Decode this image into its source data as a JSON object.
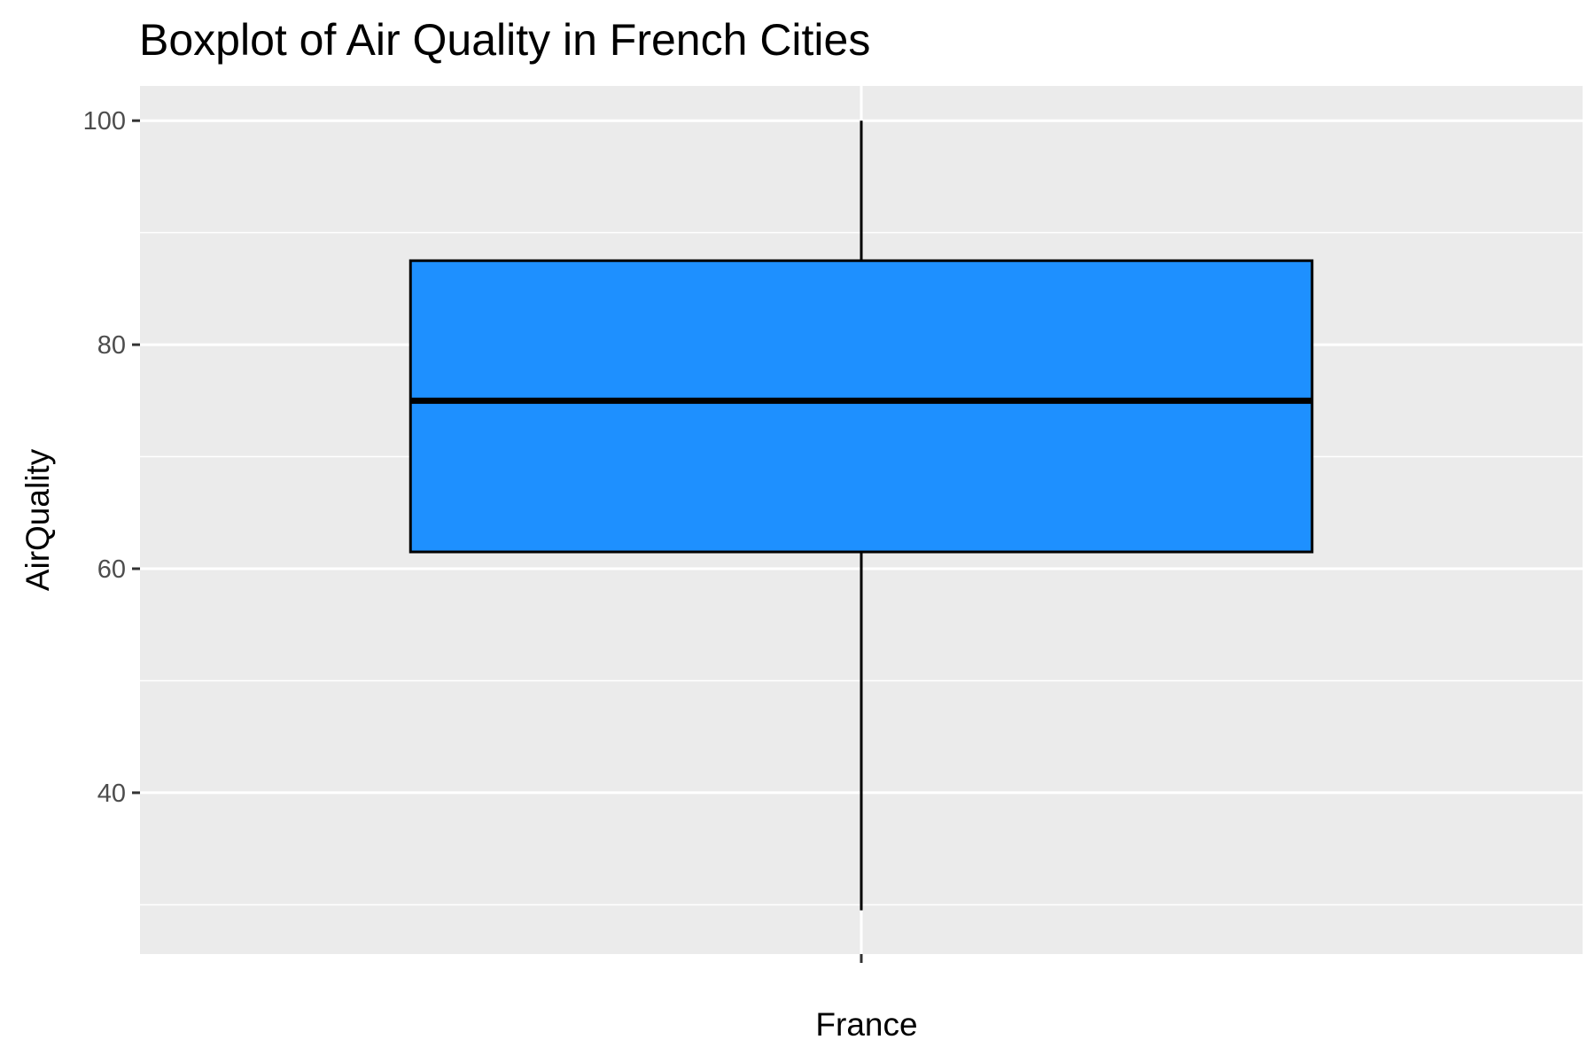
{
  "chart_data": {
    "type": "boxplot",
    "title": "Boxplot of Air Quality in French Cities",
    "xlabel": "",
    "ylabel": "AirQuality",
    "categories": [
      "France"
    ],
    "boxes": [
      {
        "category": "France",
        "whisker_low": 29.5,
        "q1": 61.5,
        "median": 75,
        "q3": 87.5,
        "whisker_high": 100
      }
    ],
    "ylim": [
      25.6,
      103.1
    ],
    "y_ticks": [
      40,
      60,
      80,
      100
    ],
    "y_tick_labels": [
      "40",
      "60",
      "80",
      "100"
    ],
    "y_minor_ticks": [
      30,
      50,
      70,
      90
    ],
    "grid": true,
    "legend": "none",
    "colors": {
      "panel_background": "#ebebeb",
      "grid_line": "#ffffff",
      "box_fill": "#1e90ff",
      "box_outline": "#000000",
      "tick_mark": "#333333",
      "tick_label": "#4d4d4d"
    }
  }
}
